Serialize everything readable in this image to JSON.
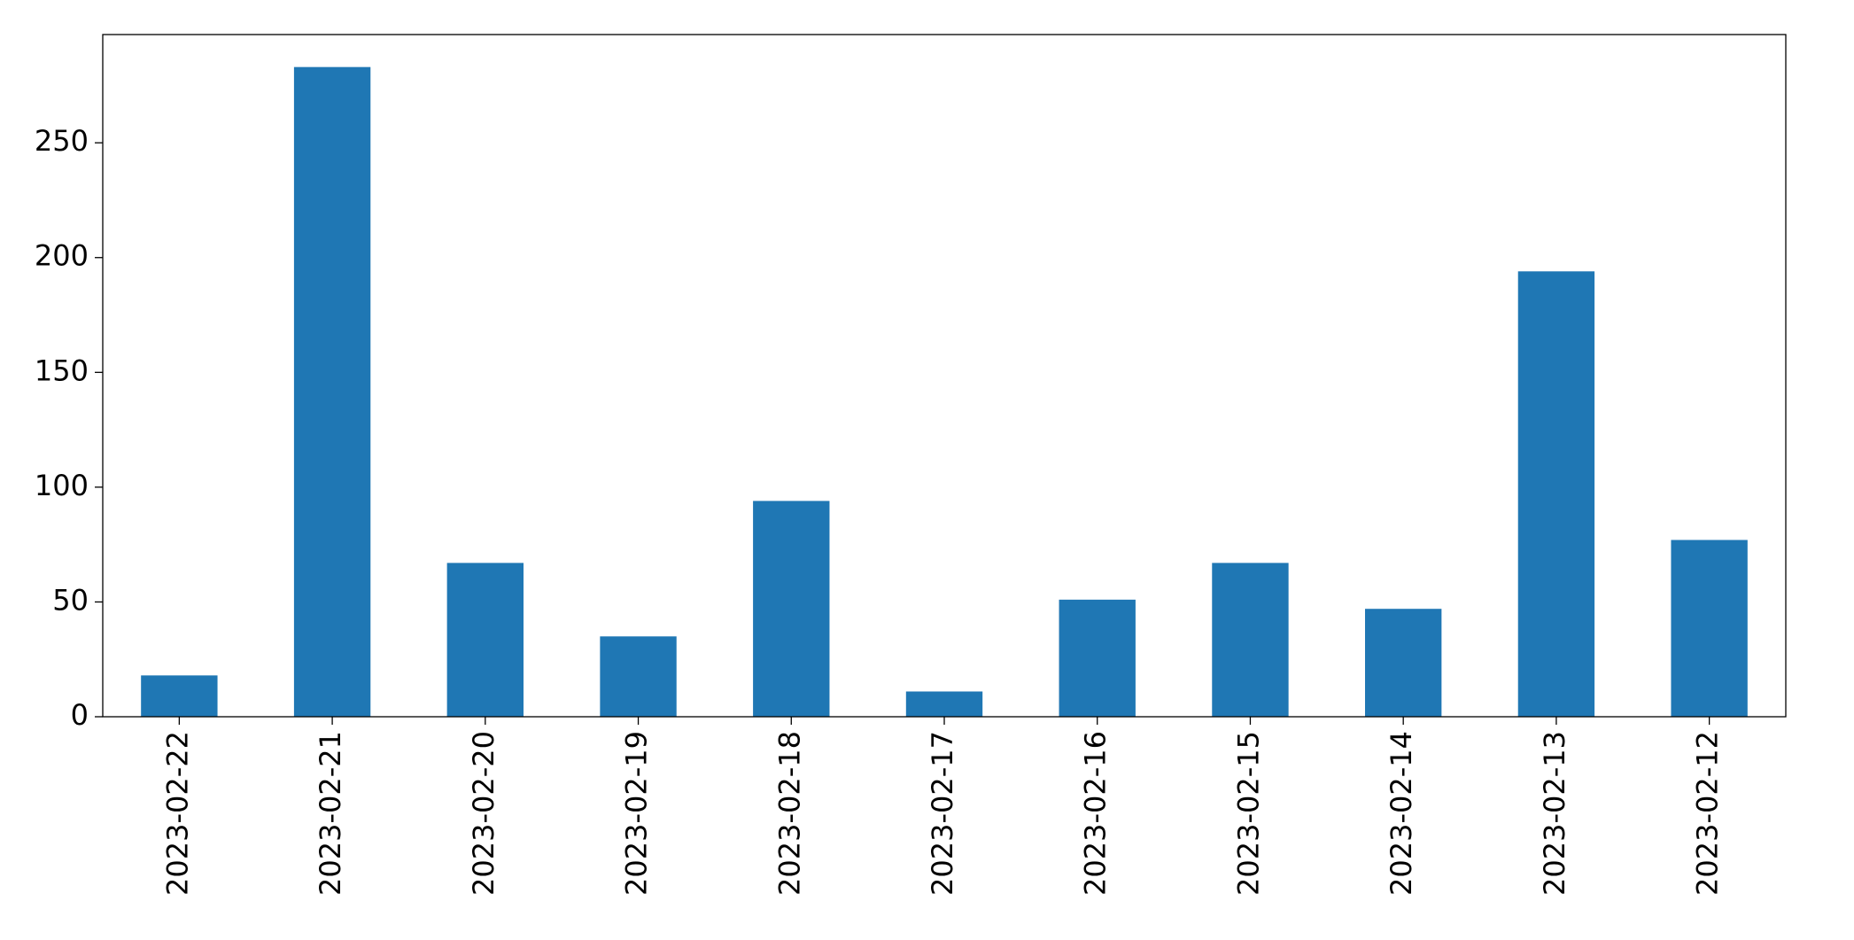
{
  "chart_data": {
    "type": "bar",
    "categories": [
      "2023-02-22",
      "2023-02-21",
      "2023-02-20",
      "2023-02-19",
      "2023-02-18",
      "2023-02-17",
      "2023-02-16",
      "2023-02-15",
      "2023-02-14",
      "2023-02-13",
      "2023-02-12"
    ],
    "values": [
      18,
      283,
      67,
      35,
      94,
      11,
      51,
      67,
      47,
      194,
      77
    ],
    "color": "#1f77b4",
    "ylim": [
      0,
      297.15
    ],
    "yticks": [
      0,
      50,
      100,
      150,
      200,
      250
    ],
    "grid": false
  }
}
